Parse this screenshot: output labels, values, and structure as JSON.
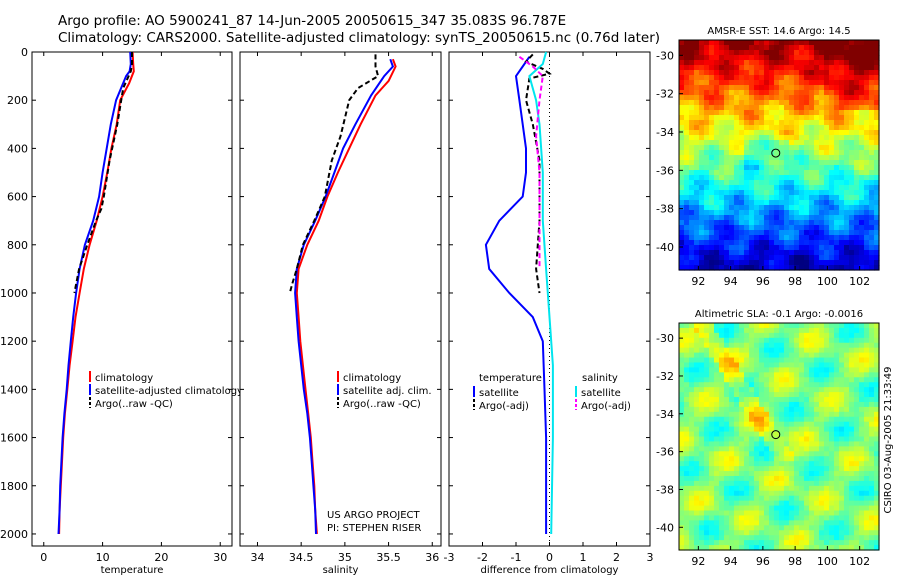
{
  "header": {
    "line1": "Argo profile: AO 5900241_87 14-Jun-2005 20050615_347 35.083S 96.787E",
    "line2": "Climatology: CARS2000. Satellite-adjusted climatology: synTS_20050615.nc (0.76d later)"
  },
  "colors": {
    "clim": "#ff0000",
    "sat": "#0000ff",
    "argo": "#000000",
    "sal_sat": "#00e5ee",
    "sal_argo": "#ff00ff"
  },
  "credit": "CSIRO 03-Aug-2005 21:33:49",
  "chart_data": [
    {
      "id": "temperature",
      "type": "line",
      "xlabel": "temperature",
      "xlim": [
        -2,
        32
      ],
      "ylim": [
        2050,
        0
      ],
      "invert_y": true,
      "xticks": [
        0,
        10,
        20,
        30
      ],
      "yticks": [
        0,
        200,
        400,
        600,
        800,
        1000,
        1200,
        1400,
        1600,
        1800,
        2000
      ],
      "legend": [
        "climatology",
        "satellite-adjusted climatology",
        "Argo(..raw -QC)"
      ],
      "series": [
        {
          "key": "clim",
          "name": "climatology",
          "dashed": false,
          "points": [
            [
              15.1,
              0
            ],
            [
              15.2,
              50
            ],
            [
              15.3,
              80
            ],
            [
              14.5,
              130
            ],
            [
              13,
              200
            ],
            [
              12.4,
              300
            ],
            [
              11.5,
              400
            ],
            [
              10.8,
              500
            ],
            [
              10,
              600
            ],
            [
              9,
              700
            ],
            [
              7.8,
              800
            ],
            [
              6.8,
              900
            ],
            [
              6.1,
              1000
            ],
            [
              5.4,
              1100
            ],
            [
              4.9,
              1200
            ],
            [
              4.4,
              1300
            ],
            [
              4,
              1400
            ],
            [
              3.6,
              1500
            ],
            [
              3.3,
              1600
            ],
            [
              3.1,
              1700
            ],
            [
              2.9,
              1800
            ],
            [
              2.7,
              1900
            ],
            [
              2.6,
              2000
            ]
          ]
        },
        {
          "key": "sat",
          "name": "satellite-adjusted climatology",
          "dashed": false,
          "points": [
            [
              14.7,
              0
            ],
            [
              14.8,
              50
            ],
            [
              14.6,
              80
            ],
            [
              14,
              100
            ],
            [
              12.3,
              200
            ],
            [
              11.4,
              300
            ],
            [
              10.7,
              400
            ],
            [
              10,
              500
            ],
            [
              9.4,
              600
            ],
            [
              8.4,
              700
            ],
            [
              7,
              800
            ],
            [
              6.1,
              900
            ],
            [
              5.5,
              1000
            ],
            [
              5,
              1100
            ],
            [
              4.6,
              1200
            ],
            [
              4.2,
              1300
            ],
            [
              3.9,
              1400
            ],
            [
              3.5,
              1500
            ],
            [
              3.2,
              1600
            ],
            [
              3,
              1700
            ],
            [
              2.8,
              1800
            ],
            [
              2.7,
              1900
            ],
            [
              2.5,
              2000
            ]
          ]
        },
        {
          "key": "argo",
          "name": "Argo(..raw -QC)",
          "dashed": true,
          "points": [
            [
              15,
              0
            ],
            [
              15,
              50
            ],
            [
              14.8,
              80
            ],
            [
              13.5,
              150
            ],
            [
              12.5,
              300
            ],
            [
              11.2,
              450
            ],
            [
              10.2,
              600
            ],
            [
              9.8,
              650
            ],
            [
              8.9,
              700
            ],
            [
              7.4,
              800
            ],
            [
              6,
              900
            ],
            [
              5.2,
              1000
            ]
          ]
        }
      ]
    },
    {
      "id": "salinity",
      "type": "line",
      "xlabel": "salinity",
      "xlim": [
        33.8,
        36.1
      ],
      "ylim": [
        2050,
        0
      ],
      "invert_y": true,
      "xticks": [
        34,
        34.5,
        35,
        35.5,
        36
      ],
      "yticks": [
        0,
        200,
        400,
        600,
        800,
        1000,
        1200,
        1400,
        1600,
        1800,
        2000
      ],
      "legend": [
        "climatology",
        "satellite adj. clim.",
        "Argo(..raw -QC)"
      ],
      "note": [
        "US ARGO PROJECT",
        "PI: STEPHEN RISER"
      ],
      "series": [
        {
          "key": "clim",
          "name": "climatology",
          "dashed": false,
          "points": [
            [
              35.55,
              30
            ],
            [
              35.58,
              60
            ],
            [
              35.5,
              120
            ],
            [
              35.35,
              180
            ],
            [
              35.18,
              300
            ],
            [
              35.05,
              400
            ],
            [
              34.92,
              500
            ],
            [
              34.8,
              600
            ],
            [
              34.7,
              700
            ],
            [
              34.57,
              800
            ],
            [
              34.47,
              900
            ],
            [
              34.45,
              1000
            ],
            [
              34.47,
              1100
            ],
            [
              34.49,
              1200
            ],
            [
              34.52,
              1300
            ],
            [
              34.55,
              1400
            ],
            [
              34.58,
              1500
            ],
            [
              34.61,
              1600
            ],
            [
              34.63,
              1700
            ],
            [
              34.65,
              1800
            ],
            [
              34.66,
              1900
            ],
            [
              34.68,
              2000
            ]
          ]
        },
        {
          "key": "sat",
          "name": "satellite adj. clim.",
          "dashed": false,
          "points": [
            [
              35.52,
              30
            ],
            [
              35.55,
              60
            ],
            [
              35.45,
              100
            ],
            [
              35.3,
              180
            ],
            [
              35.12,
              300
            ],
            [
              34.98,
              400
            ],
            [
              34.88,
              500
            ],
            [
              34.78,
              600
            ],
            [
              34.66,
              700
            ],
            [
              34.53,
              800
            ],
            [
              34.45,
              900
            ],
            [
              34.43,
              1000
            ],
            [
              34.45,
              1100
            ],
            [
              34.47,
              1200
            ],
            [
              34.5,
              1300
            ],
            [
              34.53,
              1400
            ],
            [
              34.57,
              1500
            ],
            [
              34.6,
              1600
            ],
            [
              34.62,
              1700
            ],
            [
              34.64,
              1800
            ],
            [
              34.66,
              1900
            ],
            [
              34.67,
              2000
            ]
          ]
        },
        {
          "key": "argo",
          "name": "Argo(..raw -QC)",
          "dashed": true,
          "points": [
            [
              35.35,
              10
            ],
            [
              35.35,
              60
            ],
            [
              35.38,
              100
            ],
            [
              35.15,
              150
            ],
            [
              35.05,
              200
            ],
            [
              34.95,
              350
            ],
            [
              34.85,
              450
            ],
            [
              34.77,
              600
            ],
            [
              34.65,
              700
            ],
            [
              34.52,
              800
            ],
            [
              34.45,
              900
            ],
            [
              34.4,
              960
            ],
            [
              34.37,
              1000
            ]
          ]
        }
      ]
    },
    {
      "id": "difference",
      "type": "line",
      "xlabel": "difference from climatology",
      "xlim": [
        -3,
        3
      ],
      "ylim": [
        2050,
        0
      ],
      "invert_y": true,
      "xticks": [
        -3,
        -2,
        -1,
        0,
        1,
        2,
        3
      ],
      "yticks": [
        0,
        200,
        400,
        600,
        800,
        1000,
        1200,
        1400,
        1600,
        1800,
        2000
      ],
      "legend_left": [
        "temperature",
        "satellite",
        "Argo(-adj)"
      ],
      "legend_right": [
        "salinity",
        "satellite",
        "Argo(-adj)"
      ],
      "series": [
        {
          "key": "sat",
          "name": "temperature satellite",
          "dashed": false,
          "points": [
            [
              -0.6,
              20
            ],
            [
              -0.8,
              60
            ],
            [
              -1,
              100
            ],
            [
              -0.9,
              200
            ],
            [
              -0.8,
              300
            ],
            [
              -0.7,
              400
            ],
            [
              -0.7,
              500
            ],
            [
              -0.8,
              600
            ],
            [
              -1.5,
              700
            ],
            [
              -1.9,
              800
            ],
            [
              -1.8,
              900
            ],
            [
              -1.2,
              1000
            ],
            [
              -0.5,
              1100
            ],
            [
              -0.2,
              1200
            ],
            [
              -0.15,
              1400
            ],
            [
              -0.1,
              1600
            ],
            [
              -0.1,
              1800
            ],
            [
              -0.1,
              2000
            ]
          ]
        },
        {
          "key": "argo",
          "name": "temperature Argo(-adj)",
          "dashed": true,
          "points": [
            [
              -0.5,
              10
            ],
            [
              -0.7,
              40
            ],
            [
              -0.2,
              70
            ],
            [
              0,
              90
            ],
            [
              -0.6,
              110
            ],
            [
              -0.7,
              200
            ],
            [
              -0.5,
              300
            ],
            [
              -0.3,
              450
            ],
            [
              -0.3,
              700
            ],
            [
              -0.4,
              900
            ],
            [
              -0.3,
              1000
            ]
          ]
        },
        {
          "key": "sal_sat",
          "name": "salinity satellite",
          "dashed": false,
          "points": [
            [
              -0.1,
              0
            ],
            [
              -0.2,
              50
            ],
            [
              -0.6,
              100
            ],
            [
              -0.4,
              200
            ],
            [
              -0.3,
              300
            ],
            [
              -0.2,
              500
            ],
            [
              -0.2,
              700
            ],
            [
              -0.1,
              900
            ],
            [
              0,
              1100
            ],
            [
              0.1,
              1300
            ],
            [
              0.1,
              1600
            ],
            [
              0.05,
              2000
            ]
          ]
        },
        {
          "key": "sal_argo",
          "name": "salinity Argo(-adj)",
          "dashed": true,
          "points": [
            [
              -0.9,
              20
            ],
            [
              -0.5,
              60
            ],
            [
              -0.2,
              100
            ],
            [
              -0.3,
              200
            ],
            [
              -0.4,
              350
            ],
            [
              -0.3,
              500
            ],
            [
              -0.3,
              700
            ],
            [
              -0.3,
              900
            ]
          ]
        }
      ]
    }
  ],
  "maps": [
    {
      "id": "sst",
      "title": "AMSR-E SST: 14.6  Argo: 14.5",
      "lonlim": [
        90.8,
        103.2
      ],
      "latlim": [
        -41.2,
        -29.2
      ],
      "xticks": [
        92,
        94,
        96,
        98,
        100,
        102
      ],
      "yticks": [
        -30,
        -32,
        -34,
        -36,
        -38,
        -40
      ],
      "marker": {
        "lon": 96.8,
        "lat": -35.1
      }
    },
    {
      "id": "sla",
      "title": "Altimetric SLA: -0.1  Argo: -0.0016",
      "lonlim": [
        90.8,
        103.2
      ],
      "latlim": [
        -41.2,
        -29.2
      ],
      "xticks": [
        92,
        94,
        96,
        98,
        100,
        102
      ],
      "yticks": [
        -30,
        -32,
        -34,
        -36,
        -38,
        -40
      ],
      "marker": {
        "lon": 96.8,
        "lat": -35.1
      }
    }
  ]
}
